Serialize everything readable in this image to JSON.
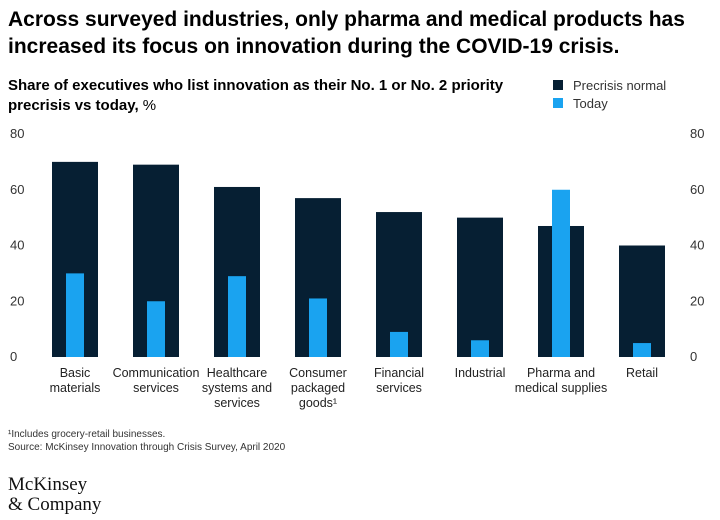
{
  "title": "Across surveyed industries, only pharma and medical products has increased its focus on innovation during the COVID-19 crisis.",
  "subtitle": {
    "main": "Share of executives who list innovation as their No. 1 or No. 2 priority precrisis vs today,",
    "unit": "%"
  },
  "colors": {
    "precrisis": "#061f33",
    "today": "#1aa3f0",
    "axis_text": "#333333"
  },
  "chart_data": {
    "type": "bar",
    "title": "Share of executives who list innovation as their No. 1 or No. 2 priority precrisis vs today, %",
    "categories": [
      [
        "Basic",
        "materials"
      ],
      [
        "Communication",
        "services"
      ],
      [
        "Healthcare",
        "systems and",
        "services"
      ],
      [
        "Consumer",
        "packaged",
        "goods¹"
      ],
      [
        "Financial",
        "services"
      ],
      [
        "Industrial"
      ],
      [
        "Pharma and",
        "medical supplies"
      ],
      [
        "Retail"
      ]
    ],
    "series": [
      {
        "name": "Precrisis normal",
        "values": [
          70,
          69,
          61,
          57,
          52,
          50,
          47,
          40
        ]
      },
      {
        "name": "Today",
        "values": [
          30,
          20,
          29,
          21,
          9,
          6,
          60,
          5
        ]
      }
    ],
    "ylim": [
      0,
      80
    ],
    "yticks": [
      0,
      20,
      40,
      60,
      80
    ],
    "grid": false,
    "legend_position": "top-right",
    "xlabel": "",
    "ylabel": ""
  },
  "footnotes": {
    "note": "¹Includes grocery-retail businesses.",
    "source": "Source: McKinsey Innovation through Crisis Survey, April 2020"
  },
  "logo": {
    "line1": "McKinsey",
    "line2": "& Company"
  }
}
